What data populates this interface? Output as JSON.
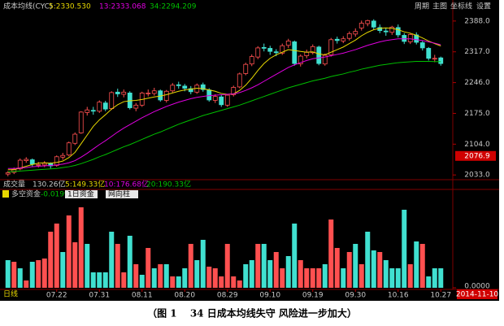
{
  "toolbar": [
    "周期",
    "主图",
    "坐标线",
    "设置"
  ],
  "volume_row": {
    "label": "成交量",
    "items": [
      "130.26亿",
      "5:149.33亿",
      "10:176.68亿",
      "20:190.33亿"
    ]
  },
  "period_label": "日线",
  "cursor_date": "2014-11-10",
  "caption": "（图 1　 34 日成本均线失守  风险进一步加大）",
  "chart_data": [
    {
      "type": "candlestick",
      "title": "成本均线(CYC)",
      "categories": [
        null,
        null,
        null,
        null,
        null,
        null,
        null,
        null,
        "07.22",
        null,
        null,
        null,
        null,
        null,
        null,
        "07.31",
        null,
        null,
        null,
        null,
        null,
        null,
        "08.11",
        null,
        null,
        null,
        null,
        null,
        null,
        "08.20",
        null,
        null,
        null,
        null,
        null,
        null,
        "08.29",
        null,
        null,
        null,
        null,
        null,
        null,
        "09.10",
        null,
        null,
        null,
        null,
        null,
        null,
        "09.19",
        null,
        null,
        null,
        null,
        null,
        null,
        "09.30",
        null,
        null,
        null,
        null,
        null,
        null,
        "10.16",
        null,
        null,
        null,
        null,
        null,
        null,
        "10.27"
      ],
      "open": [
        2035,
        2039,
        2047,
        2066,
        2068,
        2057,
        2056,
        2059,
        2055,
        2074,
        2079,
        2106,
        2130,
        2177,
        2182,
        2180,
        2199,
        2186,
        2224,
        2219,
        2222,
        2187,
        2194,
        2221,
        2221,
        2227,
        2205,
        2227,
        2241,
        2238,
        2232,
        2224,
        2241,
        2229,
        2205,
        2213,
        2194,
        2218,
        2236,
        2267,
        2289,
        2305,
        2327,
        2325,
        2317,
        2314,
        2332,
        2340,
        2289,
        2308,
        2315,
        2328,
        2289,
        2310,
        2346,
        2342,
        2348,
        2358,
        2372,
        2382,
        2388,
        2373,
        2365,
        2362,
        2373,
        2355,
        2340,
        2356,
        2338,
        2325,
        2301,
        2303
      ],
      "high": [
        2042,
        2050,
        2071,
        2074,
        2071,
        2063,
        2065,
        2062,
        2078,
        2084,
        2110,
        2131,
        2180,
        2190,
        2190,
        2205,
        2204,
        2226,
        2232,
        2230,
        2226,
        2199,
        2225,
        2230,
        2234,
        2230,
        2229,
        2245,
        2248,
        2243,
        2238,
        2244,
        2246,
        2233,
        2219,
        2217,
        2220,
        2239,
        2269,
        2292,
        2311,
        2330,
        2336,
        2331,
        2323,
        2336,
        2347,
        2343,
        2311,
        2322,
        2334,
        2331,
        2313,
        2349,
        2352,
        2353,
        2364,
        2371,
        2389,
        2391,
        2392,
        2380,
        2372,
        2377,
        2380,
        2360,
        2360,
        2362,
        2342,
        2328,
        2310,
        2306
      ],
      "low": [
        2030,
        2035,
        2044,
        2061,
        2053,
        2050,
        2051,
        2048,
        2052,
        2068,
        2076,
        2102,
        2128,
        2170,
        2172,
        2176,
        2180,
        2183,
        2213,
        2212,
        2184,
        2180,
        2190,
        2214,
        2216,
        2202,
        2200,
        2223,
        2232,
        2226,
        2219,
        2220,
        2225,
        2202,
        2199,
        2190,
        2190,
        2214,
        2233,
        2263,
        2284,
        2300,
        2318,
        2310,
        2307,
        2310,
        2326,
        2285,
        2283,
        2302,
        2311,
        2286,
        2285,
        2306,
        2336,
        2337,
        2343,
        2352,
        2366,
        2376,
        2368,
        2360,
        2354,
        2356,
        2350,
        2335,
        2335,
        2334,
        2320,
        2297,
        2293,
        2285
      ],
      "close": [
        2038,
        2046,
        2067,
        2069,
        2058,
        2057,
        2060,
        2054,
        2075,
        2078,
        2107,
        2127,
        2178,
        2183,
        2181,
        2201,
        2185,
        2223,
        2220,
        2224,
        2188,
        2194,
        2222,
        2222,
        2227,
        2206,
        2226,
        2240,
        2239,
        2233,
        2225,
        2240,
        2230,
        2206,
        2214,
        2195,
        2217,
        2235,
        2266,
        2288,
        2306,
        2326,
        2326,
        2318,
        2315,
        2331,
        2342,
        2290,
        2307,
        2316,
        2329,
        2290,
        2309,
        2345,
        2343,
        2347,
        2359,
        2364,
        2383,
        2389,
        2374,
        2366,
        2363,
        2374,
        2356,
        2341,
        2357,
        2339,
        2326,
        2302,
        2302,
        2290
      ],
      "up_color": "#ff5050",
      "down_color": "#40e0d0",
      "series": [
        {
          "name": "5:2330.530",
          "color": "#e8d800",
          "values": [
            2045,
            2045,
            2049,
            2053,
            2057,
            2060,
            2061,
            2060,
            2062,
            2065,
            2073,
            2085,
            2105,
            2125,
            2145,
            2160,
            2172,
            2185,
            2195,
            2202,
            2204,
            2205,
            2207,
            2210,
            2213,
            2215,
            2218,
            2222,
            2226,
            2229,
            2231,
            2233,
            2232,
            2229,
            2226,
            2221,
            2219,
            2220,
            2228,
            2240,
            2256,
            2274,
            2290,
            2302,
            2310,
            2316,
            2322,
            2320,
            2318,
            2316,
            2317,
            2312,
            2310,
            2316,
            2322,
            2328,
            2336,
            2344,
            2354,
            2362,
            2368,
            2371,
            2372,
            2371,
            2368,
            2363,
            2360,
            2355,
            2349,
            2342,
            2336,
            2330.53
          ]
        },
        {
          "name": "13:2333.068",
          "color": "#e000e0",
          "values": [
            2048,
            2048,
            2049,
            2050,
            2052,
            2053,
            2054,
            2055,
            2056,
            2058,
            2061,
            2066,
            2074,
            2083,
            2093,
            2103,
            2112,
            2122,
            2132,
            2141,
            2149,
            2157,
            2165,
            2172,
            2179,
            2185,
            2191,
            2196,
            2201,
            2205,
            2209,
            2212,
            2214,
            2216,
            2217,
            2218,
            2219,
            2220,
            2223,
            2228,
            2234,
            2241,
            2249,
            2257,
            2265,
            2273,
            2281,
            2287,
            2292,
            2297,
            2301,
            2303,
            2305,
            2308,
            2311,
            2314,
            2318,
            2322,
            2327,
            2332,
            2336,
            2340,
            2343,
            2345,
            2347,
            2347,
            2347,
            2345,
            2343,
            2340,
            2337,
            2333.068
          ]
        },
        {
          "name": "34:2294.209",
          "color": "#00c000",
          "values": [
            2040,
            2041,
            2042,
            2043,
            2044,
            2045,
            2046,
            2047,
            2048,
            2050,
            2052,
            2055,
            2059,
            2064,
            2069,
            2075,
            2080,
            2086,
            2092,
            2098,
            2103,
            2109,
            2115,
            2121,
            2127,
            2132,
            2138,
            2144,
            2150,
            2155,
            2160,
            2165,
            2170,
            2174,
            2178,
            2182,
            2186,
            2190,
            2194,
            2199,
            2204,
            2209,
            2214,
            2219,
            2224,
            2229,
            2234,
            2238,
            2242,
            2246,
            2250,
            2253,
            2256,
            2260,
            2263,
            2266,
            2270,
            2273,
            2277,
            2280,
            2283,
            2286,
            2288,
            2290,
            2292,
            2293,
            2294,
            2295,
            2295,
            2295,
            2294.5,
            2294.209
          ]
        }
      ],
      "ylim": [
        2024,
        2414
      ],
      "yticks": [
        {
          "value": 2388,
          "label": "2388.0"
        },
        {
          "value": 2317,
          "label": "2317.0"
        },
        {
          "value": 2246,
          "label": "2246.0"
        },
        {
          "value": 2175,
          "label": "2175.0"
        },
        {
          "value": 2104,
          "label": "2104.0"
        },
        {
          "value": 2033,
          "label": "2033.0"
        }
      ],
      "cursor_value": 2076.9
    },
    {
      "type": "bar",
      "title": "多空资金",
      "current": -0.0199,
      "selectors": [
        "1日资金",
        "网向柱"
      ],
      "values": [
        34,
        32,
        24,
        9,
        32,
        34,
        36,
        69,
        79,
        44,
        89,
        56,
        99,
        54,
        19,
        19,
        19,
        69,
        54,
        19,
        64,
        29,
        16,
        49,
        24,
        29,
        29,
        14,
        14,
        24,
        54,
        34,
        59,
        26,
        24,
        14,
        54,
        14,
        9,
        29,
        34,
        54,
        54,
        34,
        44,
        24,
        39,
        79,
        34,
        24,
        24,
        24,
        29,
        84,
        49,
        24,
        44,
        54,
        29,
        69,
        46,
        44,
        34,
        24,
        24,
        96,
        29,
        57,
        54,
        14,
        24,
        24
      ],
      "bar_colors": [
        "#40e0d0",
        "#ff5050",
        "#40e0d0",
        "#ff5050",
        "#40e0d0",
        "#ff5050",
        "#ff5050",
        "#ff5050",
        "#ff5050",
        "#40e0d0",
        "#ff5050",
        "#ff5050",
        "#ff5050",
        "#40e0d0",
        "#40e0d0",
        "#40e0d0",
        "#40e0d0",
        "#40e0d0",
        "#ff5050",
        "#ff5050",
        "#40e0d0",
        "#ff5050",
        "#40e0d0",
        "#ff5050",
        "#40e0d0",
        "#ff5050",
        "#40e0d0",
        "#ff5050",
        "#40e0d0",
        "#40e0d0",
        "#ff5050",
        "#40e0d0",
        "#40e0d0",
        "#ff5050",
        "#ff5050",
        "#ff5050",
        "#ff5050",
        "#ff5050",
        "#ff5050",
        "#40e0d0",
        "#40e0d0",
        "#ff5050",
        "#40e0d0",
        "#40e0d0",
        "#ff5050",
        "#ff5050",
        "#40e0d0",
        "#40e0d0",
        "#ff5050",
        "#ff5050",
        "#ff5050",
        "#ff5050",
        "#40e0d0",
        "#ff5050",
        "#ff5050",
        "#40e0d0",
        "#ff5050",
        "#40e0d0",
        "#ff5050",
        "#40e0d0",
        "#40e0d0",
        "#ff5050",
        "#40e0d0",
        "#40e0d0",
        "#40e0d0",
        "#40e0d0",
        "#ff5050",
        "#40e0d0",
        "#ff5050",
        "#40e0d0",
        "#40e0d0",
        "#40e0d0"
      ],
      "ylim": [
        0,
        110
      ],
      "yticks": [
        {
          "value": 0,
          "label": "0.0000"
        }
      ]
    }
  ]
}
